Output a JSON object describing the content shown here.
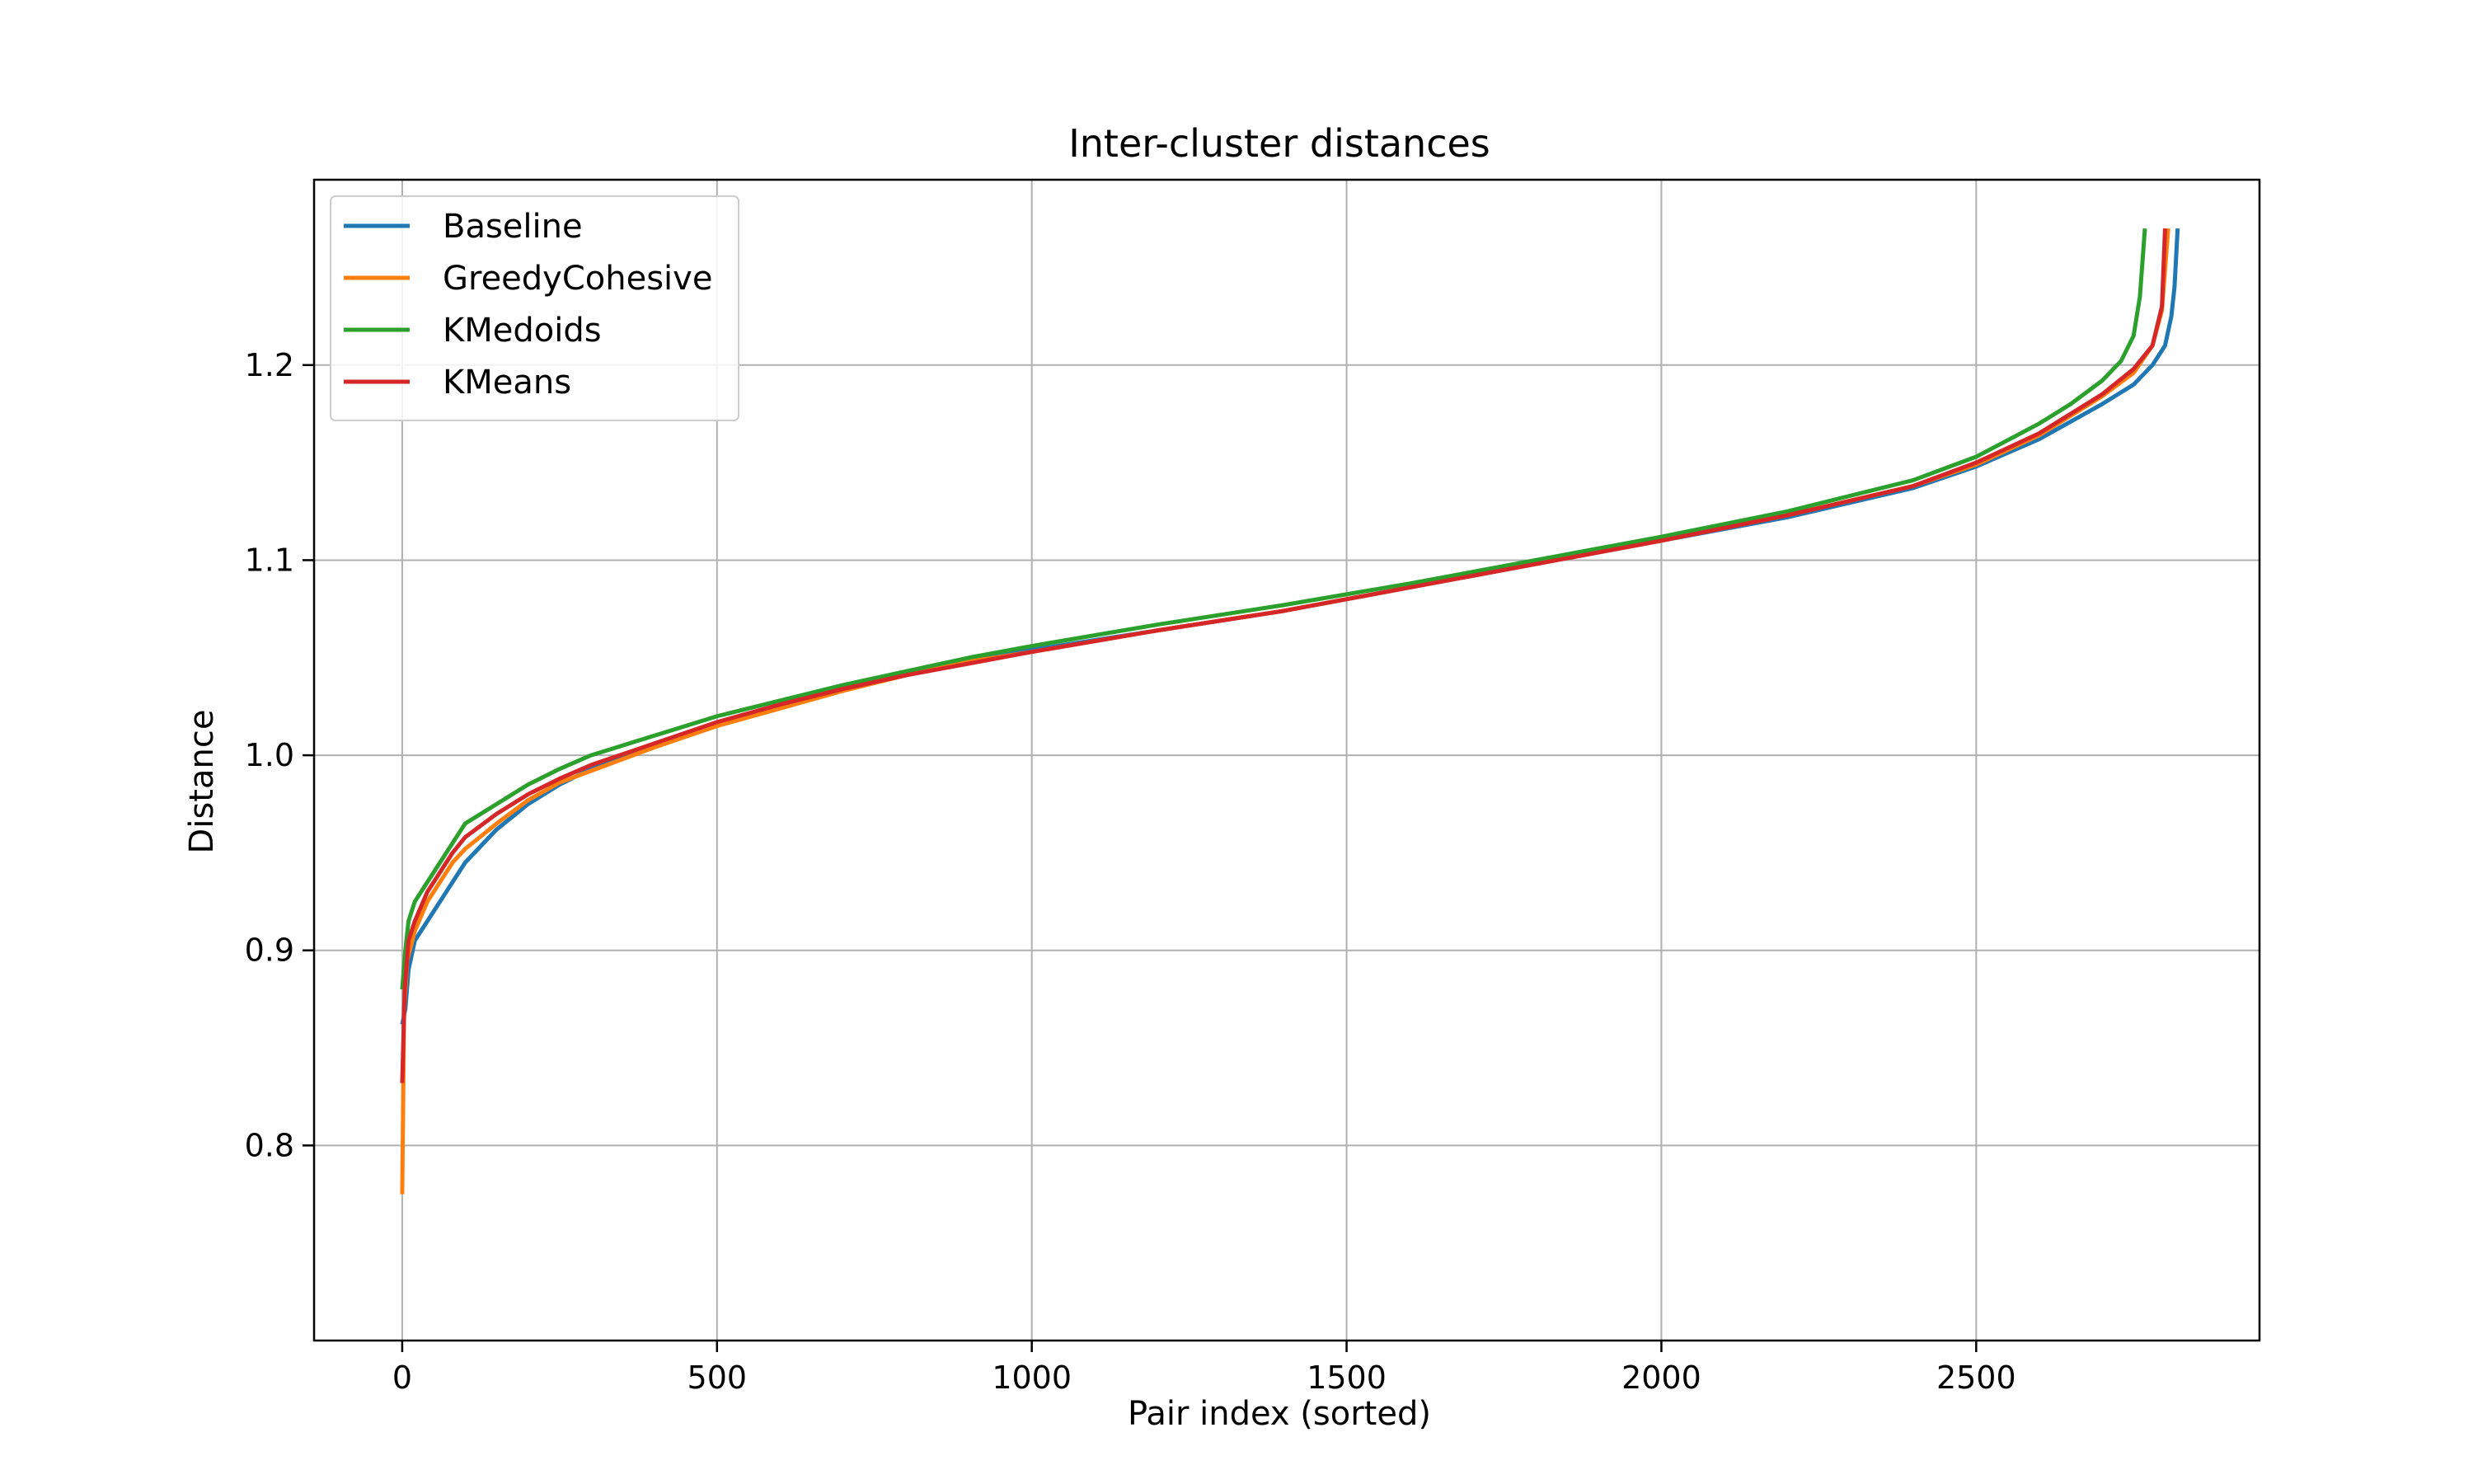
{
  "chart_data": {
    "type": "line",
    "title": "Inter-cluster distances",
    "xlabel": "Pair index (sorted)",
    "ylabel": "Distance",
    "xlim": [
      -140,
      2950
    ],
    "ylim": [
      0.7,
      1.295
    ],
    "xticks": [
      0,
      500,
      1000,
      1500,
      2000,
      2500
    ],
    "xtick_labels": [
      "0",
      "500",
      "1000",
      "1500",
      "2000",
      "2500"
    ],
    "yticks": [
      0.8,
      0.9,
      1.0,
      1.1,
      1.2
    ],
    "ytick_labels": [
      "0.8",
      "0.9",
      "1.0",
      "1.1",
      "1.2"
    ],
    "grid": true,
    "legend_position": "top-left",
    "series": [
      {
        "name": "Baseline",
        "color": "#1f77b4",
        "points": [
          [
            0,
            0.862
          ],
          [
            5,
            0.87
          ],
          [
            10,
            0.89
          ],
          [
            20,
            0.905
          ],
          [
            40,
            0.915
          ],
          [
            60,
            0.925
          ],
          [
            80,
            0.935
          ],
          [
            100,
            0.945
          ],
          [
            150,
            0.962
          ],
          [
            200,
            0.975
          ],
          [
            250,
            0.985
          ],
          [
            300,
            0.993
          ],
          [
            400,
            1.005
          ],
          [
            500,
            1.016
          ],
          [
            600,
            1.025
          ],
          [
            700,
            1.034
          ],
          [
            800,
            1.041
          ],
          [
            900,
            1.048
          ],
          [
            1000,
            1.054
          ],
          [
            1200,
            1.064
          ],
          [
            1400,
            1.074
          ],
          [
            1600,
            1.086
          ],
          [
            1800,
            1.098
          ],
          [
            2000,
            1.11
          ],
          [
            2200,
            1.122
          ],
          [
            2400,
            1.137
          ],
          [
            2500,
            1.148
          ],
          [
            2600,
            1.162
          ],
          [
            2700,
            1.18
          ],
          [
            2750,
            1.19
          ],
          [
            2780,
            1.2
          ],
          [
            2800,
            1.21
          ],
          [
            2810,
            1.225
          ],
          [
            2815,
            1.24
          ],
          [
            2820,
            1.27
          ]
        ]
      },
      {
        "name": "GreedyCohesive",
        "color": "#ff7f0e",
        "points": [
          [
            0,
            0.775
          ],
          [
            3,
            0.87
          ],
          [
            8,
            0.895
          ],
          [
            20,
            0.91
          ],
          [
            40,
            0.925
          ],
          [
            60,
            0.935
          ],
          [
            80,
            0.945
          ],
          [
            100,
            0.952
          ],
          [
            150,
            0.965
          ],
          [
            200,
            0.977
          ],
          [
            250,
            0.986
          ],
          [
            300,
            0.992
          ],
          [
            400,
            1.004
          ],
          [
            500,
            1.015
          ],
          [
            600,
            1.024
          ],
          [
            700,
            1.033
          ],
          [
            800,
            1.041
          ],
          [
            900,
            1.048
          ],
          [
            1000,
            1.053
          ],
          [
            1200,
            1.064
          ],
          [
            1400,
            1.074
          ],
          [
            1600,
            1.086
          ],
          [
            1800,
            1.098
          ],
          [
            2000,
            1.11
          ],
          [
            2200,
            1.123
          ],
          [
            2400,
            1.138
          ],
          [
            2500,
            1.149
          ],
          [
            2600,
            1.164
          ],
          [
            2700,
            1.184
          ],
          [
            2750,
            1.196
          ],
          [
            2780,
            1.21
          ],
          [
            2795,
            1.228
          ],
          [
            2805,
            1.27
          ]
        ]
      },
      {
        "name": "KMedoids",
        "color": "#2ca02c",
        "points": [
          [
            0,
            0.88
          ],
          [
            5,
            0.9
          ],
          [
            10,
            0.915
          ],
          [
            20,
            0.925
          ],
          [
            40,
            0.935
          ],
          [
            60,
            0.945
          ],
          [
            80,
            0.955
          ],
          [
            100,
            0.965
          ],
          [
            150,
            0.975
          ],
          [
            200,
            0.985
          ],
          [
            250,
            0.993
          ],
          [
            300,
            1.0
          ],
          [
            400,
            1.01
          ],
          [
            500,
            1.02
          ],
          [
            600,
            1.028
          ],
          [
            700,
            1.036
          ],
          [
            800,
            1.043
          ],
          [
            900,
            1.05
          ],
          [
            1000,
            1.056
          ],
          [
            1200,
            1.067
          ],
          [
            1400,
            1.077
          ],
          [
            1600,
            1.088
          ],
          [
            1800,
            1.1
          ],
          [
            2000,
            1.112
          ],
          [
            2200,
            1.125
          ],
          [
            2400,
            1.141
          ],
          [
            2500,
            1.153
          ],
          [
            2600,
            1.17
          ],
          [
            2650,
            1.18
          ],
          [
            2700,
            1.192
          ],
          [
            2730,
            1.202
          ],
          [
            2750,
            1.215
          ],
          [
            2760,
            1.235
          ],
          [
            2768,
            1.27
          ]
        ]
      },
      {
        "name": "KMeans",
        "color": "#d62728",
        "points": [
          [
            0,
            0.832
          ],
          [
            4,
            0.88
          ],
          [
            10,
            0.905
          ],
          [
            20,
            0.915
          ],
          [
            40,
            0.93
          ],
          [
            60,
            0.94
          ],
          [
            80,
            0.95
          ],
          [
            100,
            0.958
          ],
          [
            150,
            0.97
          ],
          [
            200,
            0.98
          ],
          [
            250,
            0.988
          ],
          [
            300,
            0.995
          ],
          [
            400,
            1.006
          ],
          [
            500,
            1.017
          ],
          [
            600,
            1.026
          ],
          [
            700,
            1.034
          ],
          [
            800,
            1.041
          ],
          [
            900,
            1.047
          ],
          [
            1000,
            1.053
          ],
          [
            1200,
            1.064
          ],
          [
            1400,
            1.074
          ],
          [
            1600,
            1.086
          ],
          [
            1800,
            1.098
          ],
          [
            2000,
            1.11
          ],
          [
            2200,
            1.123
          ],
          [
            2400,
            1.138
          ],
          [
            2500,
            1.15
          ],
          [
            2600,
            1.165
          ],
          [
            2700,
            1.185
          ],
          [
            2750,
            1.198
          ],
          [
            2780,
            1.21
          ],
          [
            2795,
            1.23
          ],
          [
            2800,
            1.27
          ]
        ]
      }
    ]
  }
}
